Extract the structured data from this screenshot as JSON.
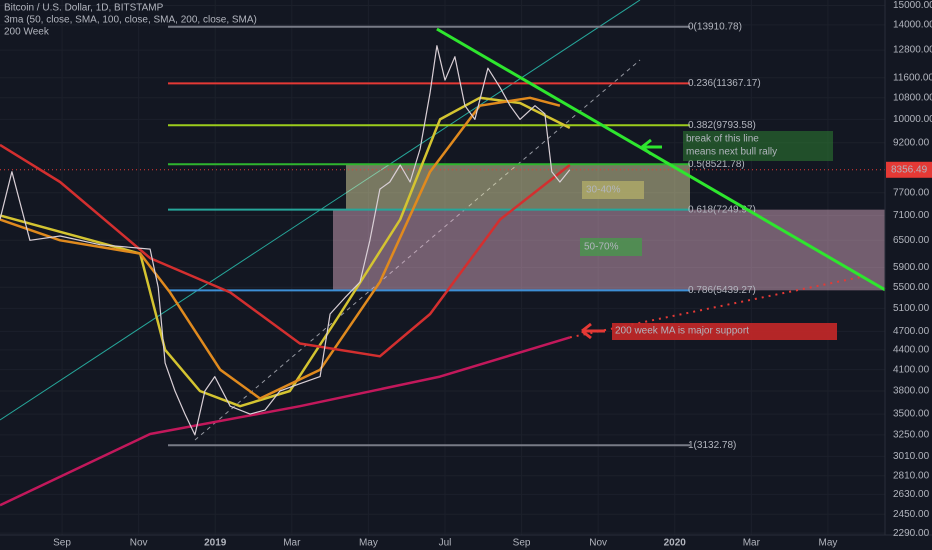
{
  "chart_data": {
    "type": "line",
    "title": "Bitcoin / U.S. Dollar, 1D, BITSTAMP",
    "indicator_labels": [
      "3ma (50, close, SMA, 100, close, SMA, 200, close, SMA)",
      "200 Week"
    ],
    "log_scale": true,
    "grid": true,
    "xlim": [
      -1.62,
      21.49
    ],
    "ylim": [
      2235,
      15300
    ],
    "xticks": [
      {
        "value": 0,
        "label": "Sep"
      },
      {
        "value": 2,
        "label": "Nov"
      },
      {
        "value": 4,
        "label": "2019"
      },
      {
        "value": 6,
        "label": "Mar"
      },
      {
        "value": 8,
        "label": "May"
      },
      {
        "value": 10,
        "label": "Jul"
      },
      {
        "value": 12,
        "label": "Sep"
      },
      {
        "value": 14,
        "label": "Nov"
      },
      {
        "value": 16,
        "label": "2020"
      },
      {
        "value": 18,
        "label": "Mar"
      },
      {
        "value": 20,
        "label": "May"
      }
    ],
    "yticks": [
      {
        "value": 15000,
        "label": "15000.00"
      },
      {
        "value": 14000,
        "label": "14000.00"
      },
      {
        "value": 12800,
        "label": "12800.00"
      },
      {
        "value": 11600,
        "label": "11600.00"
      },
      {
        "value": 10800,
        "label": "10800.00"
      },
      {
        "value": 10000,
        "label": "10000.00"
      },
      {
        "value": 9200,
        "label": "9200.00"
      },
      {
        "value": 7700,
        "label": "7700.00"
      },
      {
        "value": 7100,
        "label": "7100.00"
      },
      {
        "value": 6500,
        "label": "6500.00"
      },
      {
        "value": 5900,
        "label": "5900.00"
      },
      {
        "value": 5500,
        "label": "5500.00"
      },
      {
        "value": 5100,
        "label": "5100.00"
      },
      {
        "value": 4700,
        "label": "4700.00"
      },
      {
        "value": 4400,
        "label": "4400.00"
      },
      {
        "value": 4100,
        "label": "4100.00"
      },
      {
        "value": 3800,
        "label": "3800.00"
      },
      {
        "value": 3500,
        "label": "3500.00"
      },
      {
        "value": 3250,
        "label": "3250.00"
      },
      {
        "value": 3010,
        "label": "3010.00"
      },
      {
        "value": 2810,
        "label": "2810.00"
      },
      {
        "value": 2630,
        "label": "2630.00"
      },
      {
        "value": 2450,
        "label": "2450.00"
      },
      {
        "value": 2290,
        "label": "2290.00"
      }
    ],
    "series": [
      {
        "color": "#d9cfd6",
        "width": 1.2,
        "x": [
          -1.62,
          -1.31,
          -0.84,
          -0.05,
          0.99,
          2.3,
          2.51,
          2.69,
          2.95,
          3.21,
          3.47,
          3.73,
          3.99,
          4.39,
          4.91,
          5.3,
          5.69,
          6.21,
          6.74,
          7.0,
          7.39,
          7.78,
          8.04,
          8.3,
          8.56,
          8.83,
          9.09,
          9.35,
          9.61,
          9.79,
          10.0,
          10.26,
          10.52,
          10.78,
          11.12,
          11.44,
          11.7,
          11.96,
          12.35,
          12.61,
          12.79,
          13.0,
          13.26
        ],
        "values": [
          7000,
          8300,
          6500,
          6600,
          6400,
          6300,
          5500,
          4200,
          3800,
          3500,
          3250,
          3800,
          4000,
          3600,
          3500,
          3550,
          3800,
          3900,
          4000,
          5000,
          5300,
          5600,
          6500,
          7800,
          8000,
          8500,
          8000,
          9000,
          11000,
          13000,
          11500,
          12500,
          10500,
          10000,
          12000,
          11200,
          10500,
          10000,
          10500,
          10200,
          8300,
          8000,
          8356.49
        ]
      },
      {
        "color": "#d32f2f",
        "width": 2.5,
        "x": [
          -1.62,
          -0.05,
          2.3,
          4.39,
          6.21,
          8.3,
          9.61,
          11.44,
          13.26
        ],
        "values": [
          9130,
          8000,
          6100,
          5400,
          4500,
          4300,
          5000,
          7000,
          8500
        ]
      },
      {
        "color": "#e08a1e",
        "width": 2.5,
        "x": [
          -1.62,
          -0.05,
          2.04,
          2.82,
          4.13,
          5.17,
          6.74,
          8.3,
          9.61,
          10.91,
          12.22,
          13.0
        ],
        "values": [
          7000,
          6500,
          6200,
          5400,
          4100,
          3700,
          4100,
          5600,
          8300,
          10500,
          10800,
          10500
        ]
      },
      {
        "color": "#d4c431",
        "width": 2.5,
        "x": [
          -1.62,
          -0.05,
          2.04,
          2.69,
          3.6,
          4.65,
          5.95,
          7.26,
          8.83,
          9.87,
          10.91,
          11.96,
          13.26
        ],
        "values": [
          7100,
          6700,
          6200,
          4400,
          3800,
          3600,
          3800,
          5000,
          7000,
          10000,
          10800,
          10600,
          9700
        ]
      },
      {
        "color": "#c2185b",
        "width": 2.5,
        "x": [
          -1.62,
          2.3,
          6.21,
          9.87,
          13.26
        ],
        "values": [
          2530,
          3260,
          3600,
          4000,
          4600
        ]
      }
    ],
    "fib_levels": [
      {
        "value": 13910.78,
        "label": "0(13910.78)",
        "color": "#787b86"
      },
      {
        "value": 11367.17,
        "label": "0.236(11367.17)",
        "color": "#e53935"
      },
      {
        "value": 9793.58,
        "label": "0.382(9793.58)",
        "color": "#9ccc1c"
      },
      {
        "value": 8521.78,
        "label": "0.5(8521.78)",
        "color": "#2fb52f"
      },
      {
        "value": 7249.97,
        "label": "0.618(7249.97)",
        "color": "#26a69a"
      },
      {
        "value": 5439.27,
        "label": "0.786(5439.27)",
        "color": "#3d8fd6"
      },
      {
        "value": 3132.78,
        "label": "1(3132.78)",
        "color": "#787b86"
      }
    ],
    "zones": [
      {
        "from": 7249.97,
        "to": 8521.78,
        "label": "30-40%",
        "color": "#f3efb0"
      },
      {
        "from": 5439.27,
        "to": 7249.97,
        "label": "50-70%",
        "color": "#e8b6cf"
      }
    ],
    "trendline": {
      "x": [
        9.79,
        21.49
      ],
      "values": [
        13800,
        5450
      ],
      "color": "#2ee62e"
    },
    "support_projection": {
      "x": [
        13.26,
        20.96
      ],
      "values": [
        4600,
        5720
      ],
      "color": "#e53935"
    },
    "current_price": 8356.49,
    "annotations": [
      {
        "lines": [
          "break of this line",
          "means next bull rally"
        ],
        "color": "#2e7d32"
      },
      {
        "lines": [
          "200 week MA is major support"
        ],
        "color": "#c62828"
      }
    ]
  }
}
